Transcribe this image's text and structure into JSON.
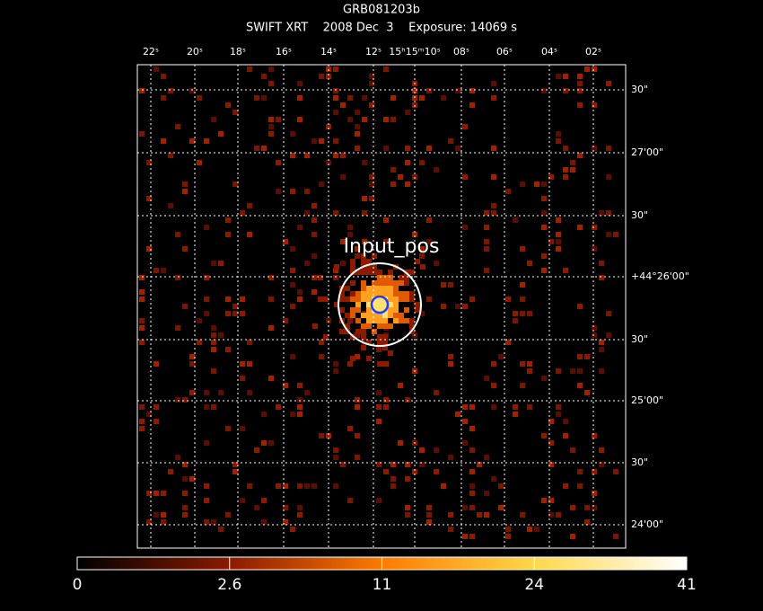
{
  "header": {
    "title": "GRB081203b",
    "subtitle": "SWIFT XRT    2008 Dec  3    Exposure: 14069 s"
  },
  "ra_labels": [
    "22ˢ",
    "20ˢ",
    "18ˢ",
    "16ˢ",
    "14ˢ",
    "12ˢ",
    "15ʰ15ᵐ10ˢ",
    "08ˢ",
    "06ˢ",
    "04ˢ",
    "02ˢ"
  ],
  "dec_labels": [
    "30\"",
    "27'00\"",
    "30\"",
    "+44°26'00\"",
    "30\"",
    "25'00\"",
    "30\"",
    "24'00\""
  ],
  "source_label": "Input_pos",
  "colorbar_labels": [
    "0",
    "2.6",
    "11",
    "24",
    "41"
  ]
}
